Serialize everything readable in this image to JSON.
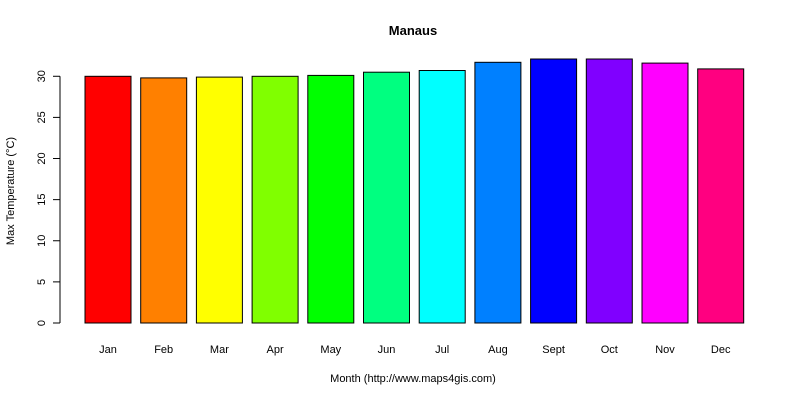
{
  "chart_data": {
    "type": "bar",
    "title": "Manaus",
    "xlabel": "Month (http://www.maps4gis.com)",
    "ylabel": "Max Temperature (°C)",
    "categories": [
      "Jan",
      "Feb",
      "Mar",
      "Apr",
      "May",
      "Jun",
      "Jul",
      "Aug",
      "Sept",
      "Oct",
      "Nov",
      "Dec"
    ],
    "values": [
      30.0,
      29.8,
      29.9,
      30.0,
      30.1,
      30.5,
      30.7,
      31.7,
      32.1,
      32.1,
      31.6,
      30.9
    ],
    "colors": [
      "#FF0000",
      "#FF8000",
      "#FFFF00",
      "#80FF00",
      "#00FF00",
      "#00FF80",
      "#00FFFF",
      "#0080FF",
      "#0000FF",
      "#8000FF",
      "#FF00FF",
      "#FF0080"
    ],
    "yticks": [
      0,
      5,
      10,
      15,
      20,
      25,
      30
    ],
    "ylim": [
      0,
      32.1
    ],
    "grid": false,
    "legend": "none"
  }
}
